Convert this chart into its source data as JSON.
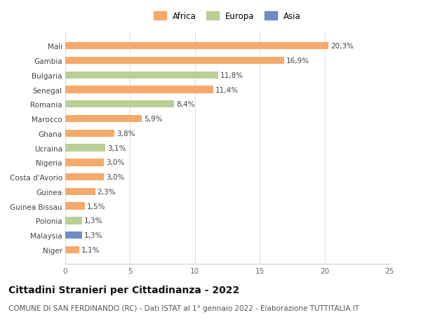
{
  "categories": [
    "Niger",
    "Malaysia",
    "Polonia",
    "Guinea Bissau",
    "Guinea",
    "Costa d'Avorio",
    "Nigeria",
    "Ucraina",
    "Ghana",
    "Marocco",
    "Romania",
    "Senegal",
    "Bulgaria",
    "Gambia",
    "Mali"
  ],
  "values": [
    1.1,
    1.3,
    1.3,
    1.5,
    2.3,
    3.0,
    3.0,
    3.1,
    3.8,
    5.9,
    8.4,
    11.4,
    11.8,
    16.9,
    20.3
  ],
  "labels": [
    "1,1%",
    "1,3%",
    "1,3%",
    "1,5%",
    "2,3%",
    "3,0%",
    "3,0%",
    "3,1%",
    "3,8%",
    "5,9%",
    "8,4%",
    "11,4%",
    "11,8%",
    "16,9%",
    "20,3%"
  ],
  "continents": [
    "Africa",
    "Asia",
    "Europa",
    "Africa",
    "Africa",
    "Africa",
    "Africa",
    "Europa",
    "Africa",
    "Africa",
    "Europa",
    "Africa",
    "Europa",
    "Africa",
    "Africa"
  ],
  "colors": {
    "Africa": "#F5A96A",
    "Europa": "#BACF94",
    "Asia": "#6B8EC4"
  },
  "xlim": [
    0,
    25
  ],
  "xticks": [
    0,
    5,
    10,
    15,
    20,
    25
  ],
  "title": "Cittadini Stranieri per Cittadinanza - 2022",
  "subtitle": "COMUNE DI SAN FERDINANDO (RC) - Dati ISTAT al 1° gennaio 2022 - Elaborazione TUTTITALIA.IT",
  "background_color": "#ffffff",
  "bar_height": 0.5,
  "title_fontsize": 10,
  "subtitle_fontsize": 7.5,
  "tick_fontsize": 7.5,
  "label_fontsize": 7.5,
  "legend_fontsize": 8.5
}
